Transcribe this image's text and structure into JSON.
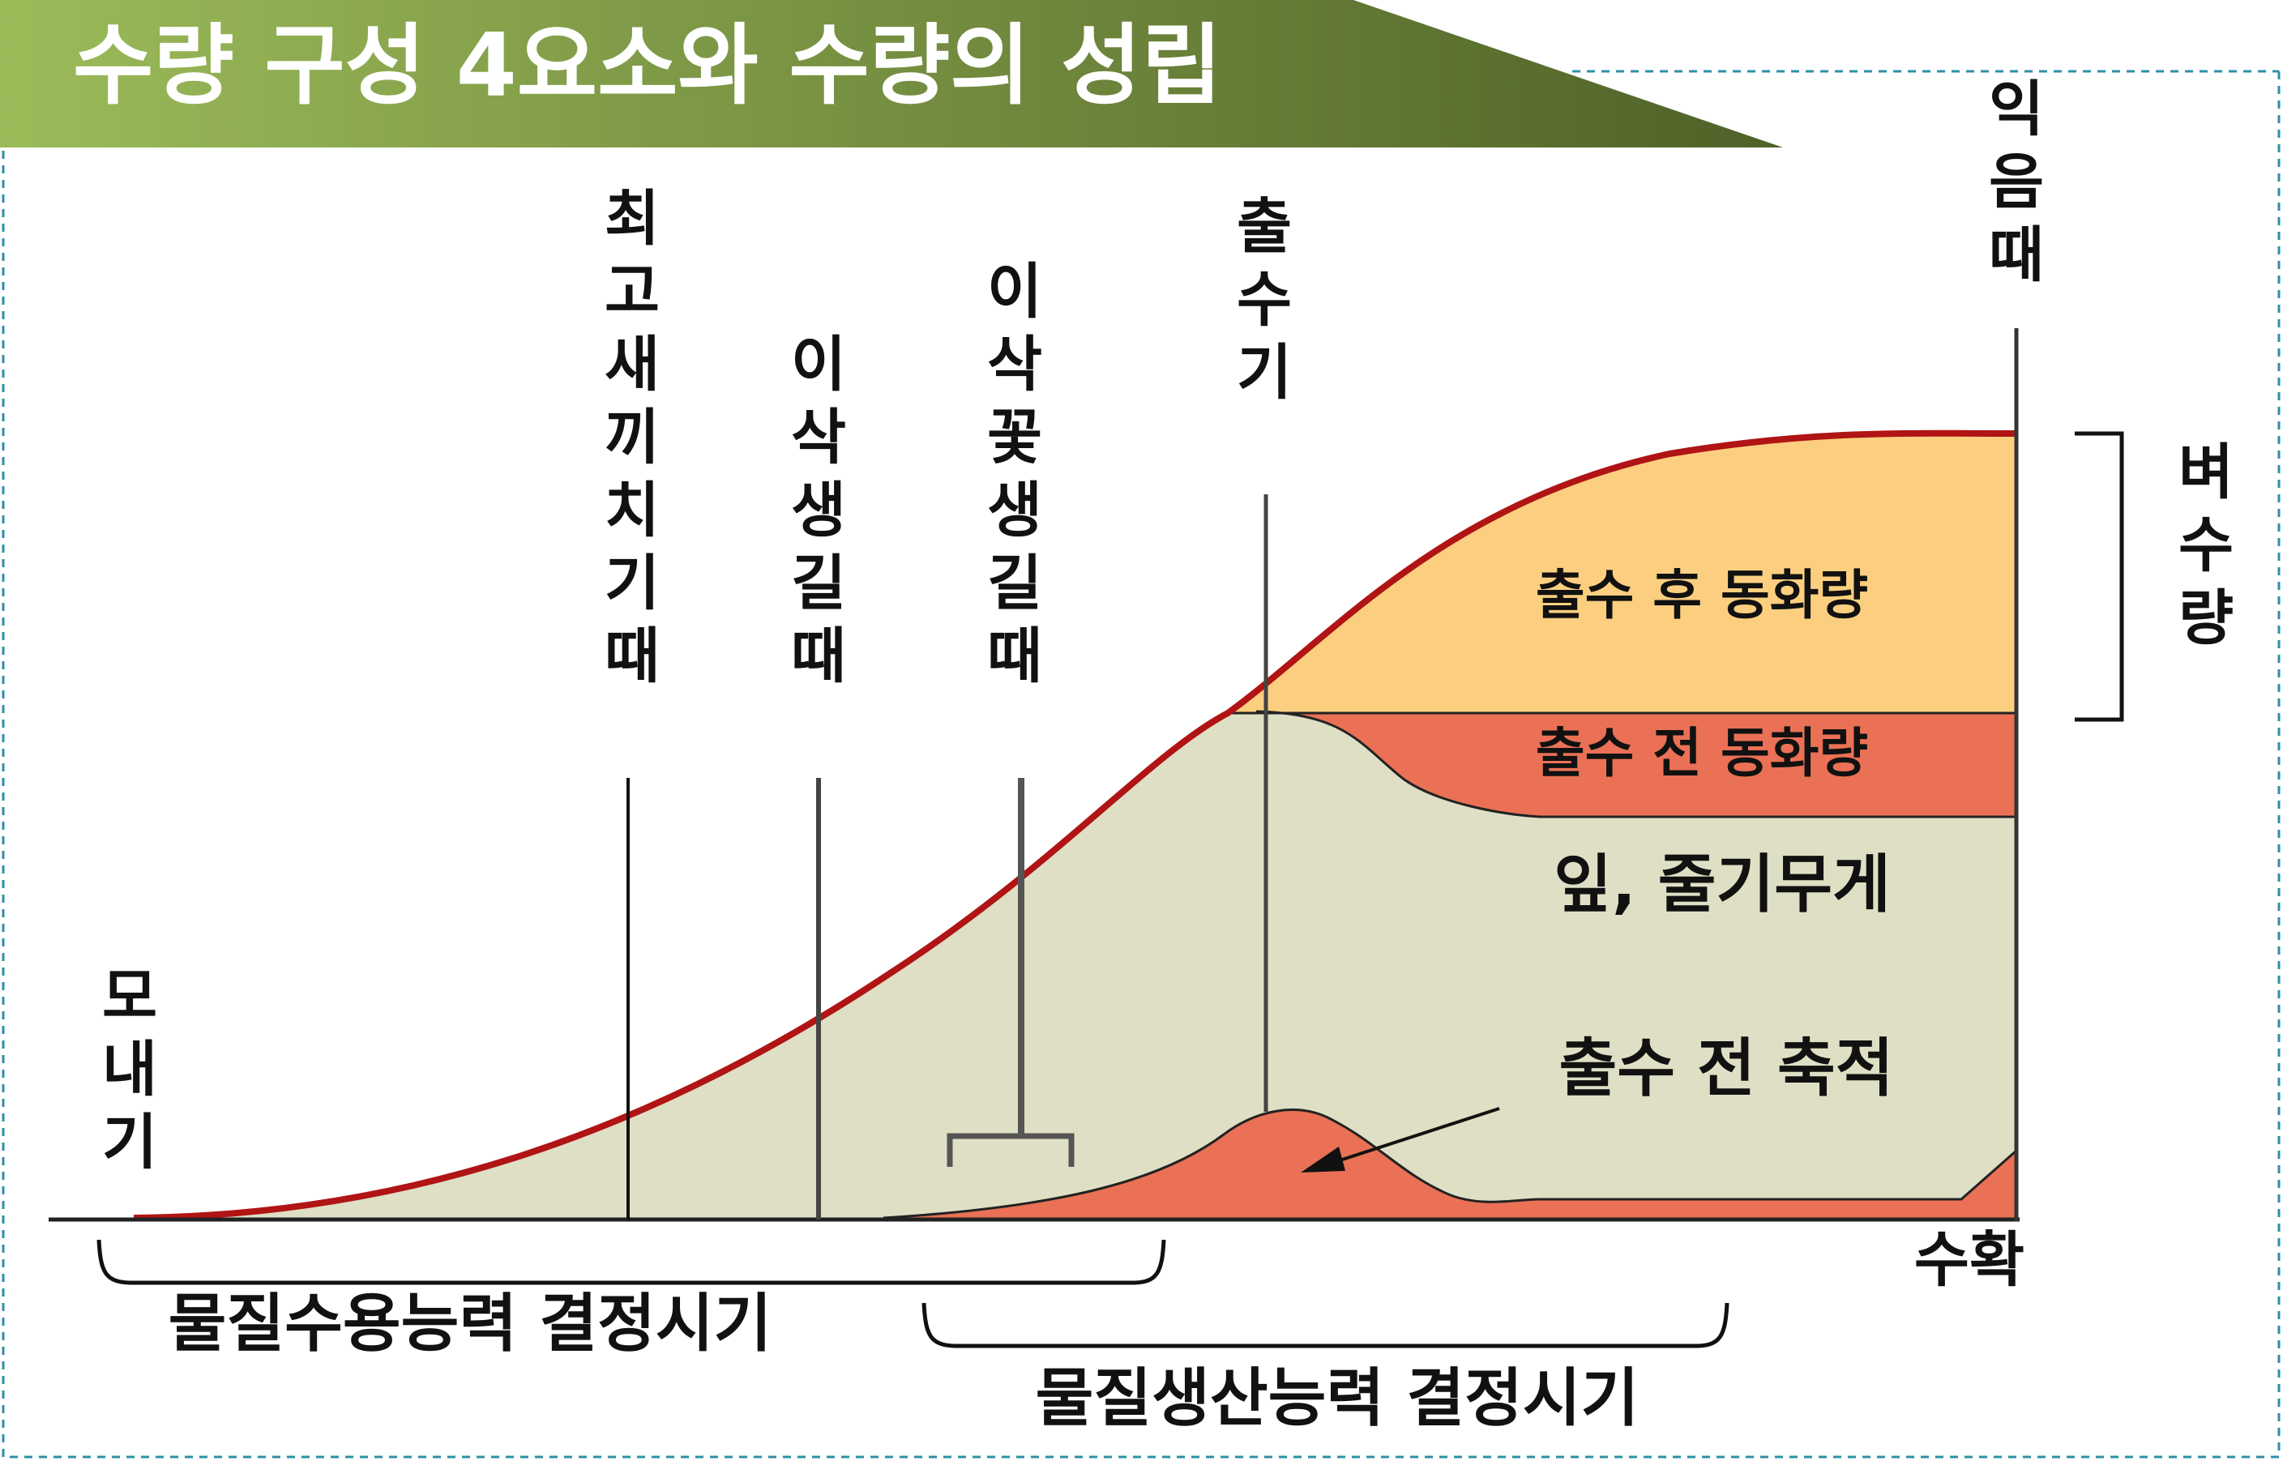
{
  "title": "수량 구성 4요소와 수량의 성립",
  "colors": {
    "title_band_left": "#9bbb59",
    "title_band_right": "#4f6228",
    "curve": "#b01414",
    "leaf_region": "#dedfc4",
    "after_heading": "#fbcf7f",
    "before_heading": "#ea7155",
    "guide_border": "#2e8fa8"
  },
  "stages": {
    "transplanting": [
      "모",
      "내",
      "기"
    ],
    "max_tillering": [
      "최",
      "고",
      "새",
      "끼",
      "치",
      "기",
      "때"
    ],
    "panicle_initiation": [
      "이",
      "삭",
      "생",
      "길",
      "때"
    ],
    "spikelet_initiation": [
      "이",
      "삭",
      "꽃",
      "생",
      "길",
      "때"
    ],
    "heading": [
      "출",
      "수",
      "기"
    ],
    "ripening": [
      "익",
      "음",
      "때"
    ]
  },
  "regions": {
    "after_heading": "출수 후 동화량",
    "before_heading": "출수 전 동화량",
    "leaf_stem": "잎, 줄기무게",
    "accumulation": "출수 전 축적"
  },
  "grain_yield": [
    "벼",
    "수",
    "량"
  ],
  "harvest": "수확",
  "periods": {
    "sink_capacity": "물질수용능력 결정시기",
    "source_capacity": "물질생산능력 결정시기"
  }
}
